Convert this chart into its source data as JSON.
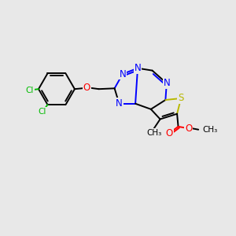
{
  "bg_color": "#e8e8e8",
  "atom_colors": {
    "C": "#000000",
    "N": "#0000ff",
    "O": "#ff0000",
    "S": "#b8b800",
    "Cl": "#00bb00"
  },
  "figsize": [
    3.0,
    3.0
  ],
  "dpi": 100,
  "lw": 1.4,
  "fs": 8.5,
  "fs_small": 7.5
}
